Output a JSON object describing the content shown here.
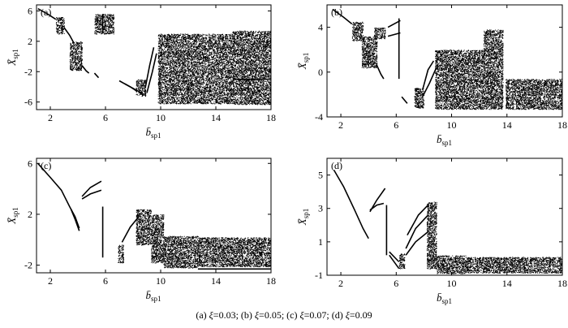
{
  "chart_data": [
    {
      "type": "scatter",
      "panel_label": "(a)",
      "xlabel": "b̄",
      "xlabel_sub": "sp1",
      "ylabel": "X̄",
      "ylabel_sub": "sp1",
      "xlim": [
        1,
        18
      ],
      "ylim": [
        -7,
        6.8
      ],
      "xticks": [
        2,
        6,
        10,
        14,
        18
      ],
      "yticks": [
        -6,
        -2,
        2,
        6
      ],
      "regions": [
        {
          "kind": "curve",
          "pts": [
            [
              1.1,
              6.3
            ],
            [
              1.8,
              5.6
            ],
            [
              2.4,
              4.9
            ]
          ]
        },
        {
          "kind": "cloud",
          "x": [
            2.4,
            3.0
          ],
          "y": [
            3.0,
            5.2
          ]
        },
        {
          "kind": "curve",
          "pts": [
            [
              3.0,
              3.8
            ],
            [
              3.4,
              2.8
            ],
            [
              3.7,
              1.8
            ]
          ]
        },
        {
          "kind": "cloud",
          "x": [
            3.4,
            4.3
          ],
          "y": [
            -1.8,
            2.0
          ]
        },
        {
          "kind": "curve",
          "pts": [
            [
              4.3,
              -1.2
            ],
            [
              4.6,
              -1.9
            ],
            [
              4.8,
              -2.2
            ]
          ]
        },
        {
          "kind": "curve",
          "pts": [
            [
              5.2,
              -2.2
            ],
            [
              5.5,
              -2.8
            ]
          ]
        },
        {
          "kind": "cloud",
          "x": [
            5.2,
            6.6
          ],
          "y": [
            3.0,
            5.6
          ]
        },
        {
          "kind": "curve",
          "pts": [
            [
              5.8,
              5.6
            ],
            [
              5.8,
              3.0
            ]
          ]
        },
        {
          "kind": "curve",
          "pts": [
            [
              7.0,
              -3.2
            ],
            [
              7.8,
              -4.0
            ],
            [
              8.3,
              -4.6
            ]
          ]
        },
        {
          "kind": "curve",
          "pts": [
            [
              7.4,
              -3.6
            ],
            [
              8.2,
              -4.4
            ],
            [
              8.8,
              -5.0
            ]
          ]
        },
        {
          "kind": "cloud",
          "x": [
            8.2,
            8.9
          ],
          "y": [
            -5.2,
            -3.0
          ]
        },
        {
          "kind": "curve",
          "pts": [
            [
              8.9,
              -4.0
            ],
            [
              9.2,
              -1.2
            ],
            [
              9.5,
              1.2
            ]
          ]
        },
        {
          "kind": "curve",
          "pts": [
            [
              9.0,
              -4.8
            ],
            [
              9.4,
              -2.0
            ],
            [
              9.7,
              0.4
            ]
          ]
        },
        {
          "kind": "cloud",
          "x": [
            9.8,
            15.2
          ],
          "y": [
            -6.2,
            3.0
          ]
        },
        {
          "kind": "cloud",
          "x": [
            15.2,
            18.0
          ],
          "y": [
            -6.3,
            3.4
          ]
        },
        {
          "kind": "curve",
          "pts": [
            [
              15.3,
              -3.0
            ],
            [
              18.0,
              -3.0
            ]
          ]
        }
      ]
    },
    {
      "type": "scatter",
      "panel_label": "(b)",
      "xlabel": "b̄",
      "xlabel_sub": "sp1",
      "ylabel": "X̄",
      "ylabel_sub": "sp1",
      "xlim": [
        1,
        18
      ],
      "ylim": [
        -4,
        6
      ],
      "xticks": [
        2,
        6,
        10,
        14,
        18
      ],
      "yticks": [
        -4,
        0,
        4
      ],
      "regions": [
        {
          "kind": "curve",
          "pts": [
            [
              1.4,
              5.6
            ],
            [
              2.2,
              4.9
            ],
            [
              2.8,
              4.3
            ]
          ]
        },
        {
          "kind": "cloud",
          "x": [
            2.8,
            3.6
          ],
          "y": [
            2.8,
            4.5
          ]
        },
        {
          "kind": "cloud",
          "x": [
            3.5,
            4.6
          ],
          "y": [
            0.4,
            3.2
          ]
        },
        {
          "kind": "curve",
          "pts": [
            [
              4.6,
              0.6
            ],
            [
              4.9,
              -0.2
            ],
            [
              5.1,
              -0.6
            ]
          ]
        },
        {
          "kind": "cloud",
          "x": [
            4.4,
            5.2
          ],
          "y": [
            3.0,
            4.0
          ]
        },
        {
          "kind": "curve",
          "pts": [
            [
              5.4,
              3.2
            ],
            [
              6.3,
              3.5
            ]
          ]
        },
        {
          "kind": "curve",
          "pts": [
            [
              5.4,
              4.0
            ],
            [
              6.3,
              4.6
            ]
          ]
        },
        {
          "kind": "curve",
          "pts": [
            [
              6.2,
              4.8
            ],
            [
              6.2,
              -0.6
            ]
          ]
        },
        {
          "kind": "curve",
          "pts": [
            [
              6.4,
              -2.2
            ],
            [
              6.8,
              -2.8
            ]
          ]
        },
        {
          "kind": "cloud",
          "x": [
            7.3,
            8.0
          ],
          "y": [
            -3.2,
            -1.4
          ]
        },
        {
          "kind": "curve",
          "pts": [
            [
              7.9,
              -1.6
            ],
            [
              8.3,
              0.2
            ],
            [
              8.7,
              1.0
            ]
          ]
        },
        {
          "kind": "curve",
          "pts": [
            [
              7.9,
              -2.2
            ],
            [
              8.4,
              -1.0
            ],
            [
              8.9,
              0.4
            ]
          ]
        },
        {
          "kind": "cloud",
          "x": [
            8.8,
            12.3
          ],
          "y": [
            -3.3,
            2.0
          ]
        },
        {
          "kind": "cloud",
          "x": [
            12.3,
            13.7
          ],
          "y": [
            -3.3,
            3.8
          ]
        },
        {
          "kind": "cloud",
          "x": [
            13.9,
            18.0
          ],
          "y": [
            -3.3,
            -0.6
          ]
        }
      ]
    },
    {
      "type": "scatter",
      "panel_label": "(c)",
      "xlabel": "b̄",
      "xlabel_sub": "sp1",
      "ylabel": "X̄",
      "ylabel_sub": "sp1",
      "xlim": [
        1,
        18
      ],
      "ylim": [
        -2.6,
        6.4
      ],
      "xticks": [
        2,
        6,
        10,
        14,
        18
      ],
      "yticks": [
        -2,
        2,
        6
      ],
      "regions": [
        {
          "kind": "curve",
          "pts": [
            [
              1.1,
              6.0
            ],
            [
              2.0,
              4.9
            ],
            [
              2.8,
              3.9
            ],
            [
              3.4,
              2.6
            ],
            [
              3.8,
              1.8
            ],
            [
              4.1,
              0.9
            ]
          ]
        },
        {
          "kind": "curve",
          "pts": [
            [
              3.5,
              2.4
            ],
            [
              3.8,
              1.6
            ],
            [
              4.1,
              0.7
            ]
          ]
        },
        {
          "kind": "curve",
          "pts": [
            [
              4.3,
              3.4
            ],
            [
              4.9,
              4.1
            ],
            [
              5.7,
              4.6
            ]
          ]
        },
        {
          "kind": "curve",
          "pts": [
            [
              4.3,
              3.2
            ],
            [
              4.9,
              3.6
            ],
            [
              5.7,
              3.9
            ]
          ]
        },
        {
          "kind": "curve",
          "pts": [
            [
              5.8,
              2.6
            ],
            [
              5.8,
              -1.4
            ]
          ]
        },
        {
          "kind": "cloud",
          "x": [
            6.9,
            7.3
          ],
          "y": [
            -1.8,
            -0.4
          ]
        },
        {
          "kind": "curve",
          "pts": [
            [
              7.2,
              -0.2
            ],
            [
              7.8,
              1.0
            ],
            [
              8.4,
              1.8
            ]
          ]
        },
        {
          "kind": "cloud",
          "x": [
            8.2,
            9.3
          ],
          "y": [
            -0.4,
            2.4
          ]
        },
        {
          "kind": "cloud",
          "x": [
            9.3,
            10.2
          ],
          "y": [
            -1.8,
            2.0
          ]
        },
        {
          "kind": "cloud",
          "x": [
            10.2,
            12.7
          ],
          "y": [
            -2.2,
            0.3
          ]
        },
        {
          "kind": "cloud",
          "x": [
            12.7,
            18.0
          ],
          "y": [
            -2.1,
            0.2
          ]
        },
        {
          "kind": "curve",
          "pts": [
            [
              12.7,
              -2.3
            ],
            [
              18.0,
              -2.3
            ]
          ]
        }
      ]
    },
    {
      "type": "scatter",
      "panel_label": "(d)",
      "xlabel": "b̄",
      "xlabel_sub": "sp1",
      "ylabel": "X̄",
      "ylabel_sub": "sp1",
      "xlim": [
        1,
        18
      ],
      "ylim": [
        -1,
        6
      ],
      "xticks": [
        2,
        6,
        10,
        14,
        18
      ],
      "yticks": [
        -1,
        1,
        3,
        5
      ],
      "regions": [
        {
          "kind": "curve",
          "pts": [
            [
              1.5,
              5.3
            ],
            [
              2.2,
              4.3
            ],
            [
              3.0,
              2.9
            ],
            [
              3.6,
              1.8
            ],
            [
              4.0,
              1.2
            ]
          ]
        },
        {
          "kind": "curve",
          "pts": [
            [
              4.1,
              2.8
            ],
            [
              4.6,
              3.5
            ],
            [
              5.2,
              4.2
            ]
          ]
        },
        {
          "kind": "curve",
          "pts": [
            [
              4.1,
              2.9
            ],
            [
              4.6,
              3.2
            ],
            [
              5.1,
              3.3
            ]
          ]
        },
        {
          "kind": "curve",
          "pts": [
            [
              5.3,
              3.2
            ],
            [
              5.3,
              0.2
            ]
          ]
        },
        {
          "kind": "curve",
          "pts": [
            [
              5.5,
              0.4
            ],
            [
              6.2,
              -0.2
            ]
          ]
        },
        {
          "kind": "curve",
          "pts": [
            [
              5.5,
              0.2
            ],
            [
              6.2,
              -0.6
            ]
          ]
        },
        {
          "kind": "cloud",
          "x": [
            6.2,
            6.6
          ],
          "y": [
            -0.6,
            0.3
          ]
        },
        {
          "kind": "curve",
          "pts": [
            [
              6.7,
              0.6
            ],
            [
              7.4,
              1.8
            ],
            [
              8.3,
              2.6
            ]
          ]
        },
        {
          "kind": "curve",
          "pts": [
            [
              6.7,
              0.2
            ],
            [
              7.4,
              1.0
            ],
            [
              8.3,
              1.6
            ]
          ]
        },
        {
          "kind": "curve",
          "pts": [
            [
              6.8,
              1.4
            ],
            [
              7.6,
              2.6
            ],
            [
              8.3,
              3.2
            ]
          ]
        },
        {
          "kind": "cloud",
          "x": [
            8.2,
            8.9
          ],
          "y": [
            -0.6,
            3.4
          ]
        },
        {
          "kind": "cloud",
          "x": [
            8.9,
            11.0
          ],
          "y": [
            -0.9,
            0.2
          ]
        },
        {
          "kind": "cloud",
          "x": [
            11.0,
            18.0
          ],
          "y": [
            -0.85,
            0.1
          ]
        }
      ]
    }
  ],
  "caption": {
    "items": [
      {
        "tag": "(a)",
        "sym": "ξ",
        "val": "=0.03;"
      },
      {
        "tag": "(b)",
        "sym": "ξ",
        "val": "=0.05;"
      },
      {
        "tag": "(c)",
        "sym": "ξ",
        "val": "=0.07;"
      },
      {
        "tag": "(d)",
        "sym": "ξ",
        "val": "=0.09"
      }
    ]
  }
}
